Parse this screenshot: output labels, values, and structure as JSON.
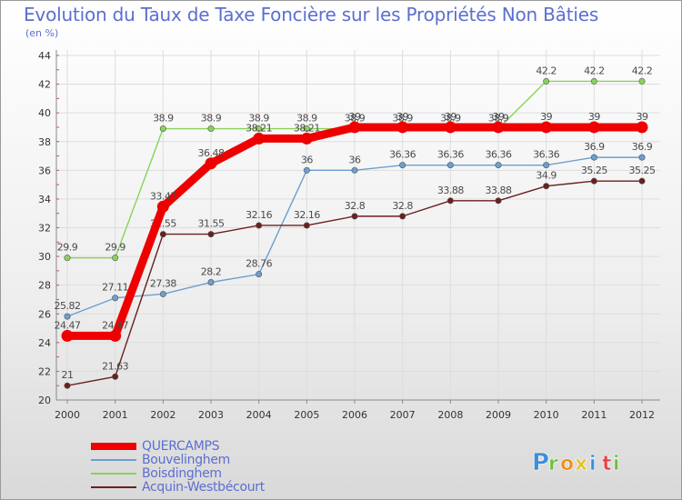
{
  "title": "Evolution du Taux de Taxe Foncière sur les Propriétés Non Bâties",
  "subtitle": "(en %)",
  "logo_text": "Proxiti",
  "chart_data": {
    "type": "line",
    "title": "Evolution du Taux de Taxe Foncière sur les Propriétés Non Bâties",
    "ylabel": "(en %)",
    "xlabel": "",
    "ylim": [
      20,
      44
    ],
    "yticks": [
      20,
      22,
      24,
      26,
      28,
      30,
      32,
      34,
      36,
      38,
      40,
      42,
      44
    ],
    "grid": true,
    "x": [
      "2000",
      "2001",
      "2002",
      "2003",
      "2004",
      "2005",
      "2006",
      "2007",
      "2008",
      "2009",
      "2010",
      "2011",
      "2012"
    ],
    "series": [
      {
        "name": "Boisdinghem",
        "color": "#88d35a",
        "values": [
          29.9,
          29.9,
          38.9,
          38.9,
          38.9,
          38.9,
          38.9,
          38.9,
          38.9,
          38.9,
          42.2,
          42.2,
          42.2
        ],
        "labels": [
          "29.9",
          "29.9",
          "38.9",
          "38.9",
          "38.9",
          "38.9",
          "38.9",
          "38.9",
          "38.9",
          "38.9",
          "42.2",
          "42.2",
          "42.2"
        ]
      },
      {
        "name": "Bouvelinghem",
        "color": "#6c9fd0",
        "values": [
          25.82,
          27.11,
          27.38,
          28.2,
          28.76,
          36,
          36,
          36.36,
          36.36,
          36.36,
          36.36,
          36.9,
          36.9
        ],
        "labels": [
          "25.82",
          "27.11",
          "27.38",
          "28.2",
          "28.76",
          "36",
          "36",
          "36.36",
          "36.36",
          "36.36",
          "36.36",
          "36.9",
          "36.9"
        ]
      },
      {
        "name": "Acquin-Westbécourt",
        "color": "#6b1f1f",
        "values": [
          21,
          21.63,
          31.55,
          31.55,
          32.16,
          32.16,
          32.8,
          32.8,
          33.88,
          33.88,
          34.9,
          35.25,
          35.25
        ],
        "labels": [
          "21",
          "21.63",
          "31.55",
          "31.55",
          "32.16",
          "32.16",
          "32.8",
          "32.8",
          "33.88",
          "33.88",
          "34.9",
          "35.25",
          "35.25"
        ]
      },
      {
        "name": "QUERCAMPS",
        "color": "#ee0000",
        "values": [
          24.47,
          24.47,
          33.47,
          36.48,
          38.21,
          38.21,
          39,
          39,
          39,
          39,
          39,
          39,
          39
        ],
        "labels": [
          "24.47",
          "24.47",
          "33.47",
          "36.48",
          "38.21",
          "38.21",
          "39",
          "39",
          "39",
          "39",
          "39",
          "39",
          "39"
        ]
      }
    ]
  },
  "legend": [
    {
      "name": "QUERCAMPS",
      "color": "#ee0000"
    },
    {
      "name": "Bouvelinghem",
      "color": "#6c9fd0"
    },
    {
      "name": "Boisdinghem",
      "color": "#88d35a"
    },
    {
      "name": "Acquin-Westbécourt",
      "color": "#6b1f1f"
    }
  ]
}
